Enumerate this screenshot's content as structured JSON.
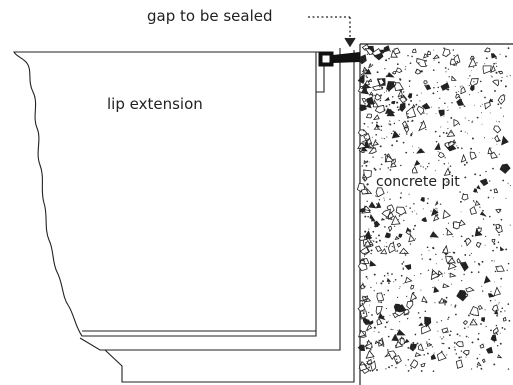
{
  "labels": {
    "gap": "gap to be sealed",
    "lip": "lip extension",
    "pit": "concrete pit"
  },
  "colors": {
    "line": "#222222",
    "seal": "#111111",
    "background": "#ffffff"
  }
}
